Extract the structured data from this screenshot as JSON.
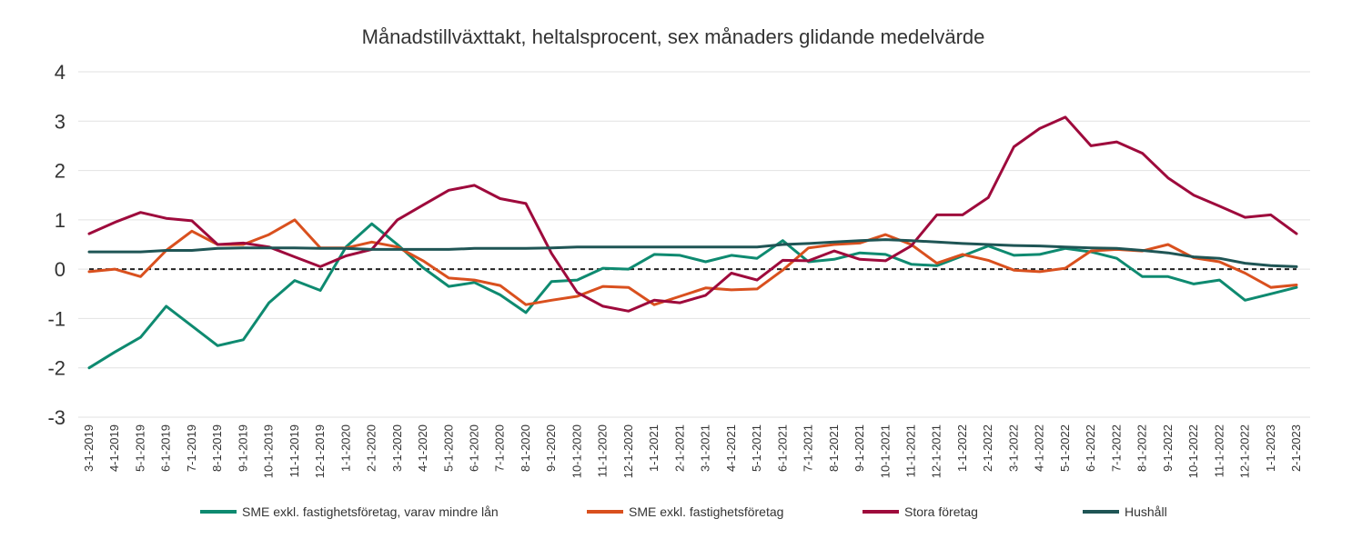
{
  "chart_data": {
    "type": "line",
    "title": "Månadstillväxttakt, heltalsprocent, sex månaders glidande medelvärde",
    "xlabel": "",
    "ylabel": "",
    "ylim": [
      -3,
      4
    ],
    "yticks": [
      "4",
      "3",
      "2",
      "1",
      "0",
      "-1",
      "-2",
      "-3"
    ],
    "grid": true,
    "zero_line": "dashed",
    "legend_position": "bottom",
    "categories": [
      "3-1-2019",
      "4-1-2019",
      "5-1-2019",
      "6-1-2019",
      "7-1-2019",
      "8-1-2019",
      "9-1-2019",
      "10-1-2019",
      "11-1-2019",
      "12-1-2019",
      "1-1-2020",
      "2-1-2020",
      "3-1-2020",
      "4-1-2020",
      "5-1-2020",
      "6-1-2020",
      "7-1-2020",
      "8-1-2020",
      "9-1-2020",
      "10-1-2020",
      "11-1-2020",
      "12-1-2020",
      "1-1-2021",
      "2-1-2021",
      "3-1-2021",
      "4-1-2021",
      "5-1-2021",
      "6-1-2021",
      "7-1-2021",
      "8-1-2021",
      "9-1-2021",
      "10-1-2021",
      "11-1-2021",
      "12-1-2021",
      "1-1-2022",
      "2-1-2022",
      "3-1-2022",
      "4-1-2022",
      "5-1-2022",
      "6-1-2022",
      "7-1-2022",
      "8-1-2022",
      "9-1-2022",
      "10-1-2022",
      "11-1-2022",
      "12-1-2022",
      "1-1-2023",
      "2-1-2023"
    ],
    "series": [
      {
        "name": "SME exkl. fastighetsföretag, varav mindre lån",
        "color": "#0e8a70",
        "values": [
          -2.0,
          -1.68,
          -1.38,
          -0.75,
          -1.15,
          -1.55,
          -1.43,
          -0.68,
          -0.23,
          -0.43,
          0.45,
          0.92,
          0.5,
          0.03,
          -0.35,
          -0.27,
          -0.52,
          -0.88,
          -0.25,
          -0.22,
          0.02,
          0.0,
          0.3,
          0.28,
          0.15,
          0.28,
          0.22,
          0.58,
          0.15,
          0.2,
          0.33,
          0.3,
          0.1,
          0.07,
          0.27,
          0.47,
          0.28,
          0.3,
          0.42,
          0.35,
          0.22,
          -0.15,
          -0.15,
          -0.3,
          -0.22,
          -0.63,
          -0.5,
          -0.37
        ]
      },
      {
        "name": "SME exkl. fastighetsföretag",
        "color": "#d9501e",
        "values": [
          -0.05,
          0.0,
          -0.15,
          0.38,
          0.77,
          0.5,
          0.5,
          0.7,
          1.0,
          0.43,
          0.43,
          0.55,
          0.45,
          0.17,
          -0.18,
          -0.22,
          -0.33,
          -0.72,
          -0.63,
          -0.55,
          -0.35,
          -0.37,
          -0.72,
          -0.55,
          -0.38,
          -0.42,
          -0.4,
          -0.02,
          0.43,
          0.5,
          0.53,
          0.7,
          0.5,
          0.12,
          0.3,
          0.18,
          -0.02,
          -0.05,
          0.02,
          0.37,
          0.4,
          0.37,
          0.5,
          0.23,
          0.15,
          -0.08,
          -0.37,
          -0.32
        ]
      },
      {
        "name": "Stora företag",
        "color": "#9e0a3c",
        "values": [
          0.72,
          0.95,
          1.15,
          1.03,
          0.98,
          0.5,
          0.53,
          0.45,
          0.25,
          0.05,
          0.27,
          0.4,
          1.0,
          1.3,
          1.6,
          1.7,
          1.43,
          1.33,
          0.32,
          -0.47,
          -0.75,
          -0.85,
          -0.63,
          -0.68,
          -0.53,
          -0.08,
          -0.22,
          0.18,
          0.17,
          0.37,
          0.2,
          0.17,
          0.47,
          1.1,
          1.1,
          1.45,
          2.48,
          2.85,
          3.08,
          2.5,
          2.58,
          2.35,
          1.85,
          1.5,
          1.28,
          1.05,
          1.1,
          0.72
        ]
      },
      {
        "name": "Hushåll",
        "color": "#1f5555",
        "values": [
          0.35,
          0.35,
          0.35,
          0.38,
          0.38,
          0.42,
          0.43,
          0.43,
          0.43,
          0.42,
          0.42,
          0.4,
          0.4,
          0.4,
          0.4,
          0.42,
          0.42,
          0.42,
          0.43,
          0.45,
          0.45,
          0.45,
          0.45,
          0.45,
          0.45,
          0.45,
          0.45,
          0.5,
          0.52,
          0.55,
          0.58,
          0.6,
          0.58,
          0.55,
          0.52,
          0.5,
          0.48,
          0.47,
          0.45,
          0.43,
          0.42,
          0.38,
          0.33,
          0.25,
          0.22,
          0.12,
          0.07,
          0.05
        ]
      }
    ]
  }
}
